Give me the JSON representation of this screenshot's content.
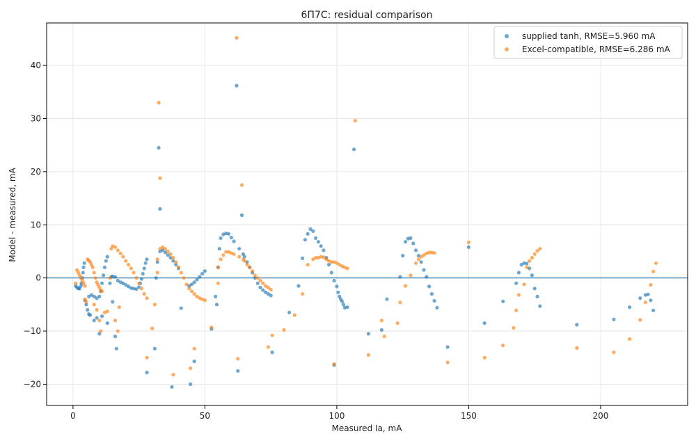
{
  "chart_data": {
    "type": "scatter",
    "title": "6П7С: residual comparison",
    "xlabel": "Measured Ia, mA",
    "ylabel": "Model - measured, mA",
    "xlim": [
      -10,
      233
    ],
    "ylim": [
      -24,
      48
    ],
    "xticks": [
      0,
      50,
      100,
      150,
      200
    ],
    "yticks": [
      -20,
      -10,
      0,
      10,
      20,
      30,
      40
    ],
    "xtick_labels": [
      "0",
      "50",
      "100",
      "150",
      "200"
    ],
    "ytick_labels": [
      "−20",
      "−10",
      "0",
      "10",
      "20",
      "30",
      "40"
    ],
    "grid": true,
    "legend_position": "top-right",
    "reference_line": {
      "y": 0,
      "color": "#1f77b4"
    },
    "series": [
      {
        "name": "supplied tanh, RMSE=5.960 mA",
        "color": "#1f77b4",
        "points": [
          [
            1,
            -1.5
          ],
          [
            1.5,
            -1.8
          ],
          [
            2,
            -2
          ],
          [
            2.5,
            -2
          ],
          [
            3,
            -1.5
          ],
          [
            3.2,
            -1
          ],
          [
            3.5,
            0
          ],
          [
            3.8,
            1
          ],
          [
            4,
            2
          ],
          [
            4.3,
            2.8
          ],
          [
            4.5,
            -4.2
          ],
          [
            5,
            -5
          ],
          [
            5.5,
            -6
          ],
          [
            6,
            -6.8
          ],
          [
            6.5,
            -7
          ],
          [
            6,
            -3.5
          ],
          [
            7,
            -3.2
          ],
          [
            8,
            -3.5
          ],
          [
            9,
            -3.8
          ],
          [
            10,
            -3.5
          ],
          [
            10.5,
            -2.5
          ],
          [
            11,
            -1
          ],
          [
            11.5,
            0.5
          ],
          [
            12,
            2
          ],
          [
            12.5,
            3.2
          ],
          [
            13,
            4
          ],
          [
            8,
            -8
          ],
          [
            9,
            -7.5
          ],
          [
            10,
            -10.5
          ],
          [
            11,
            -7.2
          ],
          [
            13,
            -8.5
          ],
          [
            15,
            -4.5
          ],
          [
            16,
            -11
          ],
          [
            16.5,
            -13.3
          ],
          [
            14,
            -1
          ],
          [
            14.5,
            0.2
          ],
          [
            15,
            0.3
          ],
          [
            16,
            0.2
          ],
          [
            17,
            -0.5
          ],
          [
            18,
            -0.8
          ],
          [
            19,
            -1
          ],
          [
            20,
            -1.3
          ],
          [
            21,
            -1.6
          ],
          [
            22,
            -1.9
          ],
          [
            23,
            -2
          ],
          [
            24,
            -2.1
          ],
          [
            25,
            -1.7
          ],
          [
            25.5,
            -1
          ],
          [
            26,
            -0.2
          ],
          [
            26.5,
            0.8
          ],
          [
            27,
            1.8
          ],
          [
            27.5,
            2.8
          ],
          [
            28,
            3.5
          ],
          [
            28,
            -17.8
          ],
          [
            31,
            -13.3
          ],
          [
            31.5,
            0
          ],
          [
            32,
            3
          ],
          [
            32.5,
            24.5
          ],
          [
            33,
            13
          ],
          [
            33,
            5
          ],
          [
            34,
            5.2
          ],
          [
            35,
            4.8
          ],
          [
            36,
            4.3
          ],
          [
            37,
            3.8
          ],
          [
            38,
            3.2
          ],
          [
            39,
            2.5
          ],
          [
            40,
            1.8
          ],
          [
            41,
            -5.7
          ],
          [
            37.5,
            -20.5
          ],
          [
            44.5,
            -20
          ],
          [
            46,
            -15.7
          ],
          [
            44,
            -1.5
          ],
          [
            45,
            -1.2
          ],
          [
            46,
            -0.8
          ],
          [
            47,
            -0.3
          ],
          [
            48,
            0.2
          ],
          [
            49,
            0.8
          ],
          [
            50,
            1.3
          ],
          [
            52.5,
            -9.6
          ],
          [
            54,
            -3.5
          ],
          [
            54.5,
            -5
          ],
          [
            55,
            2
          ],
          [
            55.5,
            5.5
          ],
          [
            56,
            7.5
          ],
          [
            57,
            8.2
          ],
          [
            58,
            8.4
          ],
          [
            59,
            8.3
          ],
          [
            60,
            7.6
          ],
          [
            61,
            6.9
          ],
          [
            62,
            36.2
          ],
          [
            62.5,
            -17.5
          ],
          [
            63,
            5.5
          ],
          [
            64,
            11.8
          ],
          [
            64.5,
            4.5
          ],
          [
            65,
            4
          ],
          [
            66,
            3
          ],
          [
            67,
            2
          ],
          [
            68,
            1
          ],
          [
            69,
            0
          ],
          [
            70,
            -1
          ],
          [
            71,
            -1.8
          ],
          [
            72,
            -2.3
          ],
          [
            73,
            -2.7
          ],
          [
            74,
            -3
          ],
          [
            75,
            -3.3
          ],
          [
            75.5,
            -14
          ],
          [
            82,
            -6.5
          ],
          [
            85.5,
            -1.5
          ],
          [
            87,
            3.7
          ],
          [
            88,
            7.2
          ],
          [
            89,
            8.3
          ],
          [
            90,
            9.2
          ],
          [
            91,
            8.8
          ],
          [
            92,
            7.5
          ],
          [
            93,
            6.8
          ],
          [
            94,
            6
          ],
          [
            95,
            5.2
          ],
          [
            96,
            3.8
          ],
          [
            97,
            2.5
          ],
          [
            98,
            1
          ],
          [
            99,
            -0.5
          ],
          [
            100,
            -1.6
          ],
          [
            100.5,
            -2.7
          ],
          [
            101,
            -3.5
          ],
          [
            101.5,
            -4
          ],
          [
            102,
            -4.4
          ],
          [
            102.5,
            -5
          ],
          [
            103,
            -5.6
          ],
          [
            104,
            -5.5
          ],
          [
            99,
            -16.4
          ],
          [
            106.5,
            24.2
          ],
          [
            112,
            -10.5
          ],
          [
            117,
            -9.8
          ],
          [
            119,
            -4
          ],
          [
            124,
            0.2
          ],
          [
            125,
            4.2
          ],
          [
            126,
            6.8
          ],
          [
            127,
            7.4
          ],
          [
            128,
            7.5
          ],
          [
            129,
            6.5
          ],
          [
            130,
            5.2
          ],
          [
            131,
            4.2
          ],
          [
            132,
            3
          ],
          [
            133,
            1.5
          ],
          [
            134,
            0.2
          ],
          [
            135,
            -1.6
          ],
          [
            136,
            -3
          ],
          [
            137,
            -4.3
          ],
          [
            138,
            -5.6
          ],
          [
            142,
            -13
          ],
          [
            150,
            5.8
          ],
          [
            156,
            -8.5
          ],
          [
            163,
            -4.4
          ],
          [
            168,
            -1
          ],
          [
            169,
            1
          ],
          [
            170,
            2.5
          ],
          [
            171,
            2.8
          ],
          [
            172,
            2.7
          ],
          [
            173,
            1.8
          ],
          [
            174,
            0.5
          ],
          [
            175,
            -2
          ],
          [
            176,
            -3.5
          ],
          [
            177,
            -5.3
          ],
          [
            191,
            -8.8
          ],
          [
            205,
            -7.8
          ],
          [
            211,
            -5.5
          ],
          [
            215,
            -3.8
          ],
          [
            217,
            -3.2
          ],
          [
            218,
            -3.1
          ],
          [
            219,
            -4.2
          ],
          [
            220,
            -6.1
          ]
        ]
      },
      {
        "name": "Excel-compatible, RMSE=6.286 mA",
        "color": "#ff7f0e",
        "points": [
          [
            1,
            -1
          ],
          [
            1.5,
            1.5
          ],
          [
            2,
            1
          ],
          [
            2.5,
            0.5
          ],
          [
            3,
            0
          ],
          [
            3.5,
            -0.5
          ],
          [
            4,
            -1
          ],
          [
            4.5,
            -1.5
          ],
          [
            4.5,
            -4
          ],
          [
            5,
            -4.5
          ],
          [
            5.5,
            3.5
          ],
          [
            6,
            3.3
          ],
          [
            6.5,
            3
          ],
          [
            7,
            2.5
          ],
          [
            7.5,
            2
          ],
          [
            8,
            1
          ],
          [
            8.5,
            0
          ],
          [
            9,
            -0.8
          ],
          [
            9.5,
            -1.3
          ],
          [
            10,
            -1.8
          ],
          [
            10.5,
            -2.3
          ],
          [
            11,
            -2.5
          ],
          [
            8,
            -5
          ],
          [
            9,
            -6
          ],
          [
            10,
            -8
          ],
          [
            10.5,
            -10
          ],
          [
            12,
            -6.5
          ],
          [
            13,
            -6.3
          ],
          [
            14,
            0
          ],
          [
            14.5,
            5.5
          ],
          [
            15,
            6
          ],
          [
            16,
            5.8
          ],
          [
            17,
            5.2
          ],
          [
            18,
            4.6
          ],
          [
            19,
            4
          ],
          [
            20,
            3.2
          ],
          [
            21,
            2.5
          ],
          [
            22,
            1.8
          ],
          [
            23,
            1
          ],
          [
            24,
            0
          ],
          [
            25,
            -1
          ],
          [
            26,
            -2
          ],
          [
            27,
            -3
          ],
          [
            28,
            -3.8
          ],
          [
            16,
            -8
          ],
          [
            17,
            -10
          ],
          [
            17.5,
            -5.5
          ],
          [
            28,
            -15
          ],
          [
            30,
            -9.5
          ],
          [
            31,
            -5
          ],
          [
            32,
            1
          ],
          [
            32,
            3.5
          ],
          [
            32.5,
            33
          ],
          [
            33,
            18.8
          ],
          [
            33,
            5.5
          ],
          [
            34,
            5.8
          ],
          [
            35,
            5.5
          ],
          [
            36,
            5
          ],
          [
            37,
            4.5
          ],
          [
            38,
            3.8
          ],
          [
            39,
            3
          ],
          [
            40,
            2
          ],
          [
            41,
            1
          ],
          [
            42,
            0
          ],
          [
            43,
            -1.2
          ],
          [
            44,
            -2
          ],
          [
            38,
            -18.2
          ],
          [
            44.5,
            -17
          ],
          [
            46,
            -13.3
          ],
          [
            45,
            -2.5
          ],
          [
            46,
            -3
          ],
          [
            47,
            -3.5
          ],
          [
            48,
            -3.8
          ],
          [
            49,
            -4
          ],
          [
            50,
            -4.2
          ],
          [
            52.5,
            -9.3
          ],
          [
            55,
            -1
          ],
          [
            55,
            2
          ],
          [
            56,
            3.5
          ],
          [
            57,
            4.3
          ],
          [
            58,
            4.9
          ],
          [
            59,
            4.9
          ],
          [
            60,
            4.7
          ],
          [
            61,
            4.5
          ],
          [
            62,
            45.2
          ],
          [
            62.5,
            -15.2
          ],
          [
            63,
            4
          ],
          [
            64,
            17.5
          ],
          [
            64.5,
            3.5
          ],
          [
            65,
            3.2
          ],
          [
            66,
            2.5
          ],
          [
            67,
            2
          ],
          [
            68,
            1.3
          ],
          [
            69,
            0.5
          ],
          [
            70,
            0
          ],
          [
            71,
            -0.5
          ],
          [
            72,
            -1
          ],
          [
            73,
            -1.5
          ],
          [
            74,
            -1.8
          ],
          [
            75,
            -2.2
          ],
          [
            74,
            -13
          ],
          [
            75.5,
            -10.8
          ],
          [
            80,
            -9.8
          ],
          [
            84,
            -7
          ],
          [
            87,
            -3
          ],
          [
            89,
            2.5
          ],
          [
            91,
            3.5
          ],
          [
            92,
            3.8
          ],
          [
            93,
            3.8
          ],
          [
            94,
            4
          ],
          [
            95,
            3.9
          ],
          [
            96,
            3.5
          ],
          [
            97,
            3.2
          ],
          [
            98,
            3
          ],
          [
            99,
            3
          ],
          [
            100,
            2.8
          ],
          [
            101,
            2.5
          ],
          [
            102,
            2.2
          ],
          [
            103,
            2
          ],
          [
            104,
            1.8
          ],
          [
            99,
            -16.2
          ],
          [
            107,
            29.6
          ],
          [
            112,
            -14.5
          ],
          [
            117,
            -8
          ],
          [
            118,
            -11
          ],
          [
            123,
            -8.5
          ],
          [
            124,
            -4.6
          ],
          [
            126,
            -1.5
          ],
          [
            128,
            0.5
          ],
          [
            130,
            2.8
          ],
          [
            131,
            3.5
          ],
          [
            132,
            4
          ],
          [
            133,
            4.3
          ],
          [
            134,
            4.6
          ],
          [
            135,
            4.8
          ],
          [
            136,
            4.8
          ],
          [
            137,
            4.7
          ],
          [
            142,
            -15.9
          ],
          [
            150,
            6.7
          ],
          [
            156,
            -15
          ],
          [
            163,
            -12.7
          ],
          [
            167,
            -9.4
          ],
          [
            168,
            -6.1
          ],
          [
            169,
            -3.2
          ],
          [
            171,
            -1.2
          ],
          [
            172,
            2
          ],
          [
            173,
            3.2
          ],
          [
            174,
            3.8
          ],
          [
            175,
            4.5
          ],
          [
            176,
            5.1
          ],
          [
            177,
            5.5
          ],
          [
            191,
            -13.2
          ],
          [
            205,
            -14
          ],
          [
            211,
            -11.5
          ],
          [
            215,
            -7.9
          ],
          [
            217,
            -4.6
          ],
          [
            219,
            -1.3
          ],
          [
            220,
            1.2
          ],
          [
            221,
            2.8
          ]
        ]
      }
    ]
  }
}
